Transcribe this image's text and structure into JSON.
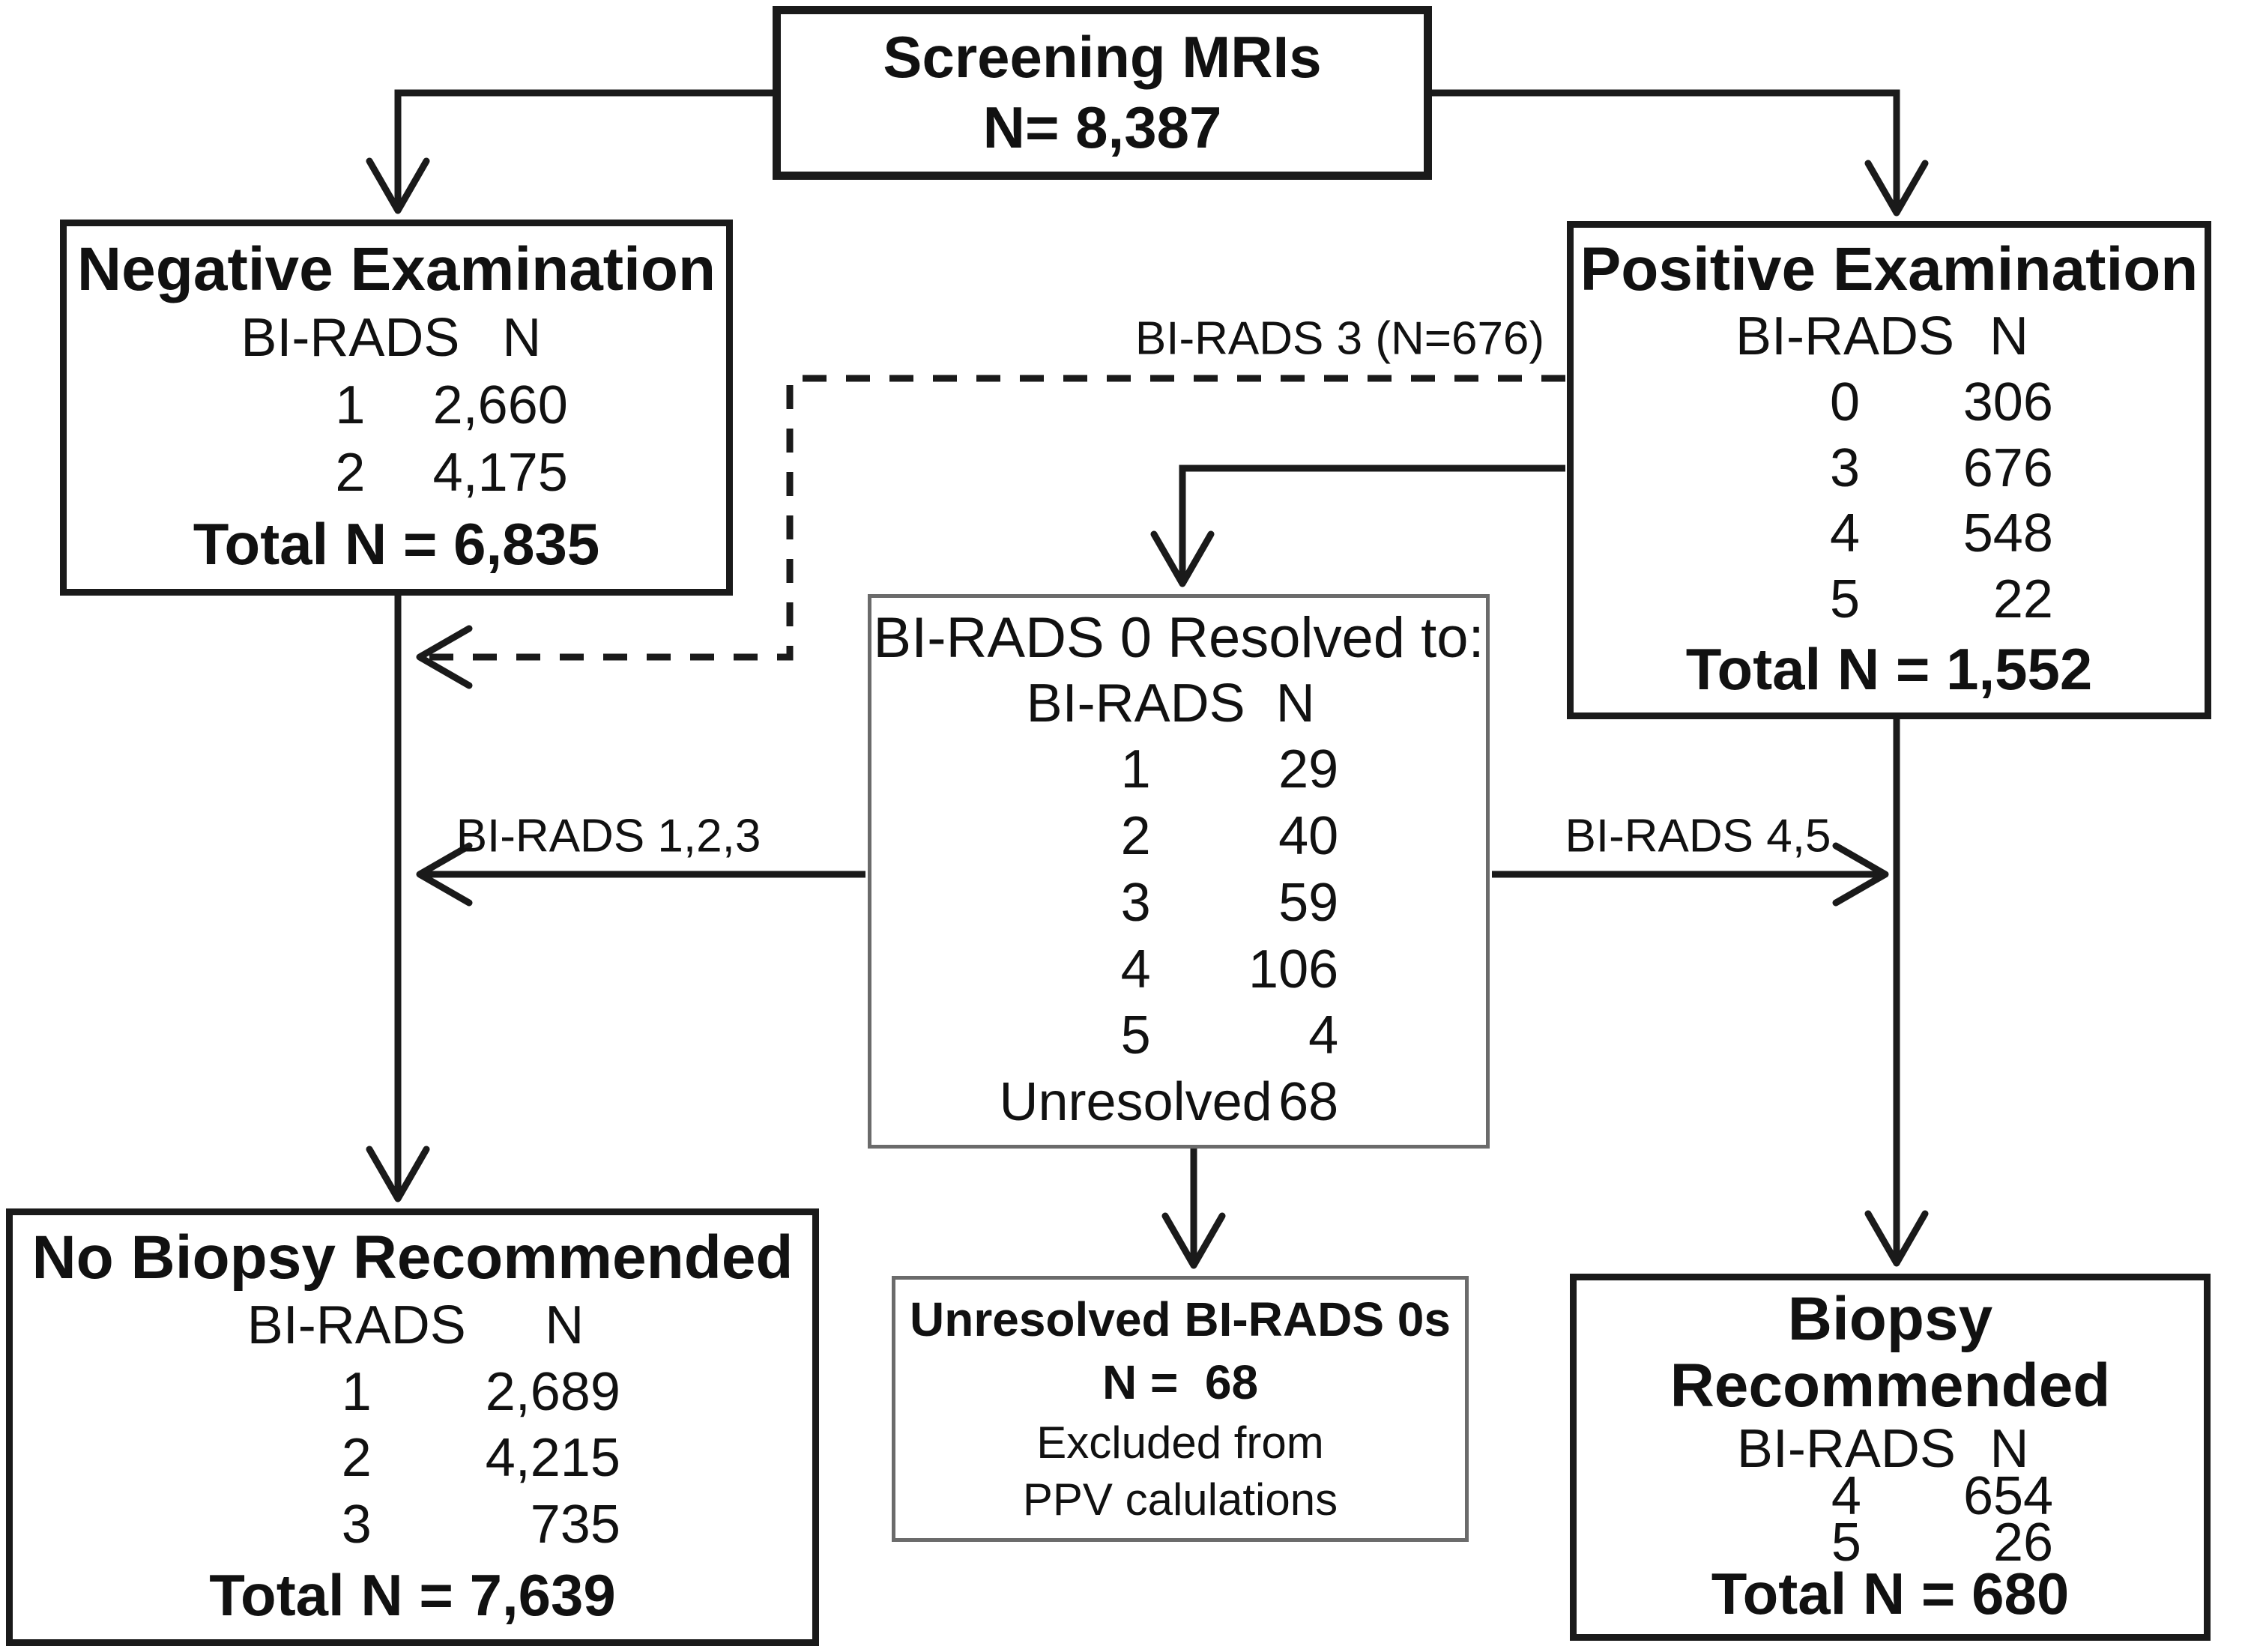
{
  "boxes": {
    "screening": {
      "line1": "Screening MRIs",
      "line2": "N= 8,387"
    },
    "negative": {
      "title": "Negative Examination",
      "col1": "BI-RADS",
      "col2": "N",
      "rows": [
        [
          "1",
          "2,660"
        ],
        [
          "2",
          "4,175"
        ]
      ],
      "total": "Total N = 6,835"
    },
    "positive": {
      "title": "Positive Examination",
      "col1": "BI-RADS",
      "col2": "N",
      "rows": [
        [
          "0",
          "306"
        ],
        [
          "3",
          "676"
        ],
        [
          "4",
          "548"
        ],
        [
          "5",
          "22"
        ]
      ],
      "total": "Total N = 1,552"
    },
    "resolved": {
      "title": "BI-RADS 0 Resolved to:",
      "col1": "BI-RADS",
      "col2": "N",
      "rows": [
        [
          "1",
          "29"
        ],
        [
          "2",
          "40"
        ],
        [
          "3",
          "59"
        ],
        [
          "4",
          "106"
        ],
        [
          "5",
          "4"
        ],
        [
          "Unresolved",
          "68"
        ]
      ]
    },
    "no_biopsy": {
      "title": "No Biopsy Recommended",
      "col1": "BI-RADS",
      "col2": "N",
      "rows": [
        [
          "1",
          "2,689"
        ],
        [
          "2",
          "4,215"
        ],
        [
          "3",
          "735"
        ]
      ],
      "total": "Total N = 7,639"
    },
    "unresolved": {
      "line1": "Unresolved BI-RADS 0s",
      "line2": "N =  68",
      "line3": "Excluded from",
      "line4": "PPV calulations"
    },
    "biopsy": {
      "title": "Biopsy Recommended",
      "col1": "BI-RADS",
      "col2": "N",
      "rows": [
        [
          "4",
          "654"
        ],
        [
          "5",
          "26"
        ]
      ],
      "total": "Total N = 680"
    }
  },
  "edge_labels": {
    "birads3": "BI-RADS 3 (N=676)",
    "birads123": "BI-RADS 1,2,3",
    "birads45": "BI-RADS 4,5"
  },
  "colors": {
    "line": "#1a1a1a",
    "subtle_border": "#6b6b6b",
    "text": "#111111",
    "background": "#ffffff"
  }
}
